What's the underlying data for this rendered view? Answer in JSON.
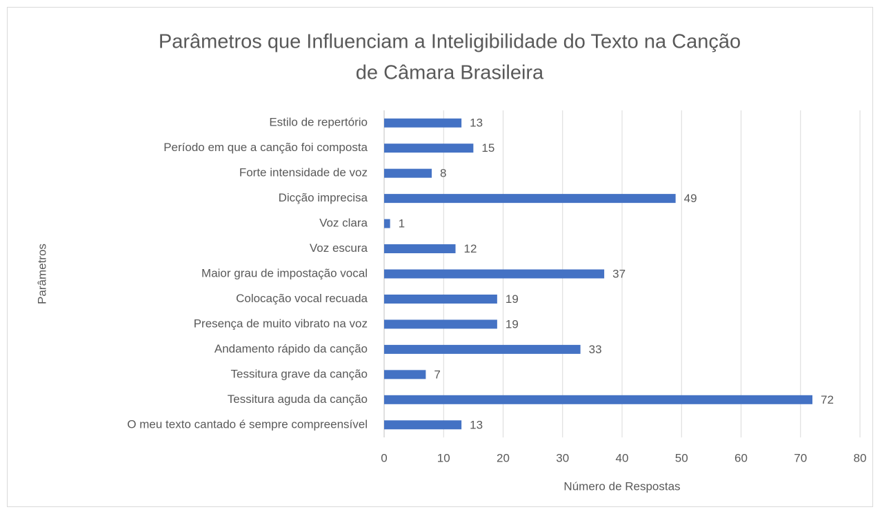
{
  "chart_data": {
    "type": "bar",
    "orientation": "horizontal",
    "title": [
      "Parâmetros que Influenciam a Inteligibilidade do Texto na Canção",
      "de Câmara Brasileira"
    ],
    "x_label": "Número de Respostas",
    "y_label": "Parâmetros",
    "categories": [
      "Estilo de repertório",
      "Período em que a canção foi composta",
      "Forte intensidade de voz",
      "Dicção imprecisa",
      "Voz clara",
      "Voz escura",
      "Maior grau de impostação vocal",
      "Colocação vocal recuada",
      "Presença de muito vibrato na voz",
      "Andamento rápido da canção",
      "Tessitura grave da canção",
      "Tessitura aguda da canção",
      "O meu texto cantado é sempre compreensível"
    ],
    "values": [
      13,
      15,
      8,
      49,
      1,
      12,
      37,
      19,
      19,
      33,
      7,
      72,
      13
    ],
    "color": "#4472c4",
    "xlim": [
      0,
      80
    ],
    "xticks": [
      0,
      10,
      20,
      30,
      40,
      50,
      60,
      70,
      80
    ],
    "grid": true
  }
}
